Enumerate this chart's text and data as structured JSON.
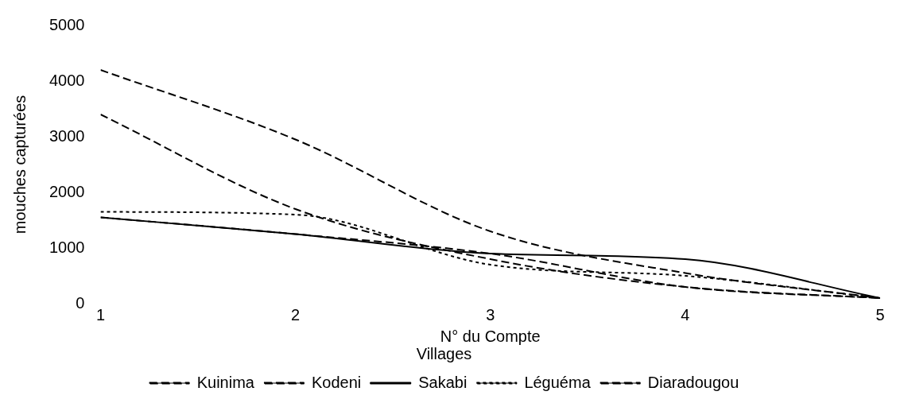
{
  "chart_data": {
    "type": "line",
    "xlabel": "N° du Compte",
    "ylabel": "mouches capturées",
    "legend_title": "Villages",
    "legend": "bottom",
    "grid": false,
    "marker": "none",
    "x": [
      1,
      2,
      3,
      4,
      5
    ],
    "xlim": [
      1,
      5
    ],
    "xticks": [
      1,
      2,
      3,
      4,
      5
    ],
    "ylim": [
      0,
      5000
    ],
    "yticks": [
      0,
      1000,
      2000,
      3000,
      4000,
      5000
    ],
    "series": [
      {
        "name": "Kuinima",
        "color": "#000000",
        "line_style": "dashed",
        "values": [
          4200,
          2950,
          1300,
          550,
          100
        ]
      },
      {
        "name": "Kodeni",
        "color": "#000000",
        "line_style": "dashed",
        "values": [
          3400,
          1700,
          800,
          300,
          100
        ]
      },
      {
        "name": "Sakabi",
        "color": "#000000",
        "line_style": "solid",
        "values": [
          1550,
          1250,
          900,
          800,
          100
        ]
      },
      {
        "name": "Léguéma",
        "color": "#000000",
        "line_style": "dotted",
        "values": [
          1650,
          1600,
          700,
          500,
          100
        ]
      },
      {
        "name": "Diaradougou",
        "color": "#000000",
        "line_style": "dashed",
        "values": [
          1550,
          1250,
          900,
          300,
          100
        ]
      }
    ]
  }
}
